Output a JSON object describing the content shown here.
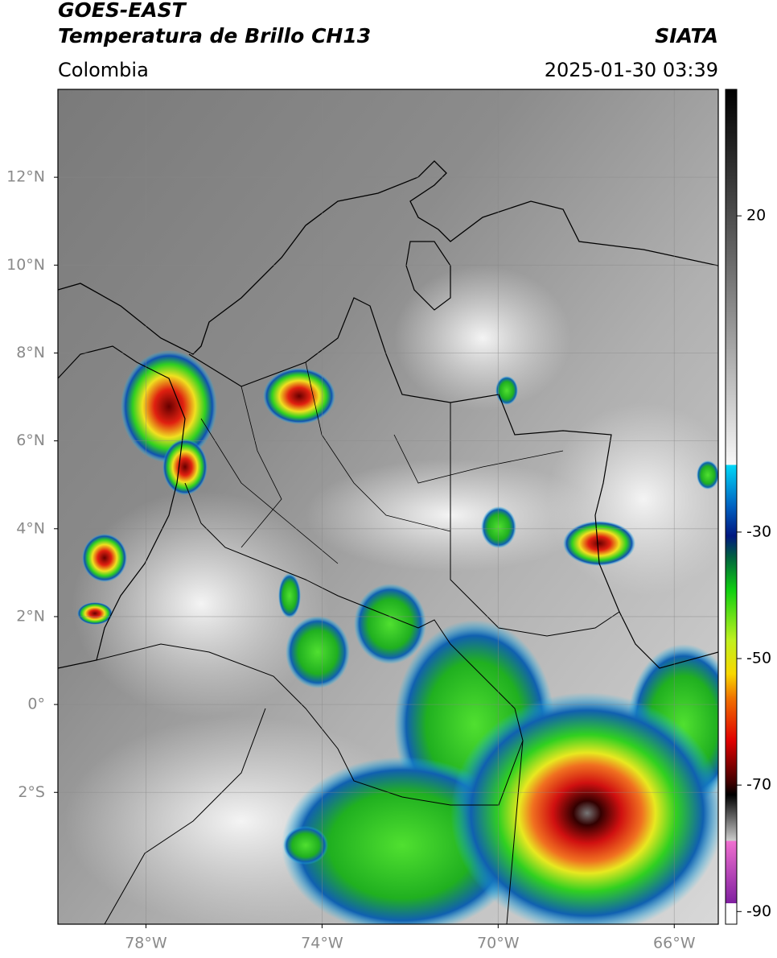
{
  "header": {
    "title_line1": "GOES-EAST",
    "title_line2": "Temperatura de Brillo CH13",
    "source": "SIATA",
    "region": "Colombia",
    "datetime": "2025-01-30 03:39"
  },
  "map": {
    "xlim": [
      -80,
      -65
    ],
    "ylim": [
      -5,
      14
    ],
    "xticks": [
      {
        "value": -78,
        "label": "78°W"
      },
      {
        "value": -74,
        "label": "74°W"
      },
      {
        "value": -70,
        "label": "70°W"
      },
      {
        "value": -66,
        "label": "66°W"
      }
    ],
    "yticks": [
      {
        "value": 12,
        "label": "12°N"
      },
      {
        "value": 10,
        "label": "10°N"
      },
      {
        "value": 8,
        "label": "8°N"
      },
      {
        "value": 6,
        "label": "6°N"
      },
      {
        "value": 4,
        "label": "4°N"
      },
      {
        "value": 2,
        "label": "2°N"
      },
      {
        "value": 0,
        "label": "0°"
      },
      {
        "value": -2,
        "label": "2°S"
      }
    ],
    "grid": true
  },
  "colorbar": {
    "lim": [
      -92,
      40
    ],
    "ticks": [
      20,
      -30,
      -50,
      -70,
      -90
    ]
  }
}
